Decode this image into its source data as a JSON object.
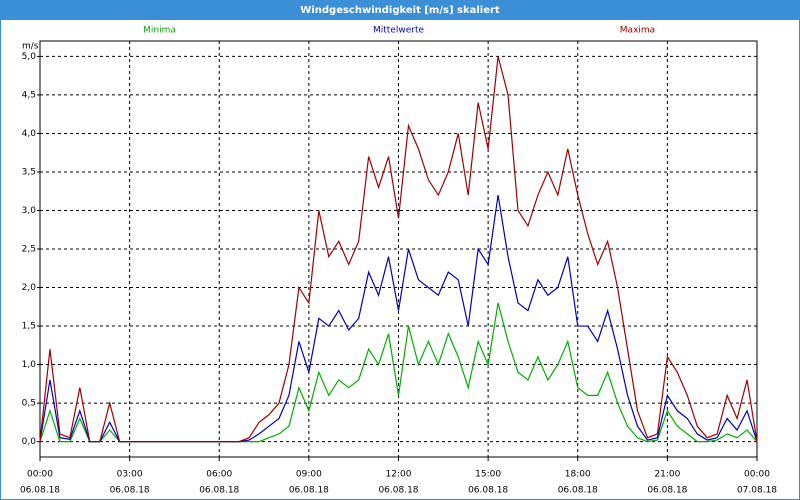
{
  "chart_data": {
    "type": "line",
    "title": "Windgeschwindigkeit [m/s] skaliert",
    "ylabel": "m/s",
    "x": [
      "06.08.18 00:00",
      "06.08.18 00:20",
      "06.08.18 00:40",
      "06.08.18 01:00",
      "06.08.18 01:20",
      "06.08.18 01:40",
      "06.08.18 02:00",
      "06.08.18 02:20",
      "06.08.18 02:40",
      "06.08.18 03:00",
      "06.08.18 03:20",
      "06.08.18 03:40",
      "06.08.18 04:00",
      "06.08.18 04:20",
      "06.08.18 04:40",
      "06.08.18 05:00",
      "06.08.18 05:20",
      "06.08.18 05:40",
      "06.08.18 06:00",
      "06.08.18 06:20",
      "06.08.18 06:40",
      "06.08.18 07:00",
      "06.08.18 07:20",
      "06.08.18 07:40",
      "06.08.18 08:00",
      "06.08.18 08:20",
      "06.08.18 08:40",
      "06.08.18 09:00",
      "06.08.18 09:20",
      "06.08.18 09:40",
      "06.08.18 10:00",
      "06.08.18 10:20",
      "06.08.18 10:40",
      "06.08.18 11:00",
      "06.08.18 11:20",
      "06.08.18 11:40",
      "06.08.18 12:00",
      "06.08.18 12:20",
      "06.08.18 12:40",
      "06.08.18 13:00",
      "06.08.18 13:20",
      "06.08.18 13:40",
      "06.08.18 14:00",
      "06.08.18 14:20",
      "06.08.18 14:40",
      "06.08.18 15:00",
      "06.08.18 15:20",
      "06.08.18 15:40",
      "06.08.18 16:00",
      "06.08.18 16:20",
      "06.08.18 16:40",
      "06.08.18 17:00",
      "06.08.18 17:20",
      "06.08.18 17:40",
      "06.08.18 18:00",
      "06.08.18 18:20",
      "06.08.18 18:40",
      "06.08.18 19:00",
      "06.08.18 19:20",
      "06.08.18 19:40",
      "06.08.18 20:00",
      "06.08.18 20:20",
      "06.08.18 20:40",
      "06.08.18 21:00",
      "06.08.18 21:20",
      "06.08.18 21:40",
      "06.08.18 22:00",
      "06.08.18 22:20",
      "06.08.18 22:40",
      "06.08.18 23:00",
      "06.08.18 23:20",
      "06.08.18 23:40",
      "07.08.18 00:00"
    ],
    "series": [
      {
        "name": "Minima",
        "color": "#00b000",
        "values": [
          0,
          0.4,
          0,
          0,
          0.3,
          0,
          0,
          0.15,
          0,
          0,
          0,
          0,
          0,
          0,
          0,
          0,
          0,
          0,
          0,
          0,
          0,
          0,
          0,
          0.05,
          0.1,
          0.2,
          0.7,
          0.4,
          0.9,
          0.6,
          0.8,
          0.7,
          0.8,
          1.2,
          1.0,
          1.4,
          0.6,
          1.5,
          1.0,
          1.3,
          1.0,
          1.4,
          1.1,
          0.7,
          1.3,
          1.0,
          1.8,
          1.3,
          0.9,
          0.8,
          1.1,
          0.8,
          1.0,
          1.3,
          0.7,
          0.6,
          0.6,
          0.9,
          0.5,
          0.2,
          0.05,
          0,
          0.02,
          0.4,
          0.2,
          0.1,
          0,
          0,
          0.02,
          0.1,
          0.05,
          0.15,
          0
        ]
      },
      {
        "name": "Mittelwerte",
        "color": "#0000c0",
        "values": [
          0,
          0.8,
          0.05,
          0.03,
          0.4,
          0,
          0,
          0.25,
          0,
          0,
          0,
          0,
          0,
          0,
          0,
          0,
          0,
          0,
          0,
          0,
          0,
          0.02,
          0.1,
          0.2,
          0.3,
          0.6,
          1.3,
          0.9,
          1.6,
          1.5,
          1.7,
          1.45,
          1.6,
          2.2,
          1.9,
          2.4,
          1.7,
          2.5,
          2.1,
          2.0,
          1.9,
          2.2,
          2.1,
          1.5,
          2.5,
          2.3,
          3.2,
          2.4,
          1.8,
          1.7,
          2.1,
          1.9,
          2.0,
          2.4,
          1.5,
          1.5,
          1.3,
          1.7,
          1.2,
          0.6,
          0.2,
          0.02,
          0.05,
          0.6,
          0.4,
          0.3,
          0.1,
          0.02,
          0.05,
          0.3,
          0.15,
          0.4,
          0
        ]
      },
      {
        "name": "Maxima",
        "color": "#a00000",
        "values": [
          0,
          1.2,
          0.1,
          0.05,
          0.7,
          0,
          0,
          0.5,
          0,
          0,
          0,
          0,
          0,
          0,
          0,
          0,
          0,
          0,
          0,
          0,
          0,
          0.05,
          0.25,
          0.35,
          0.5,
          1.0,
          2.0,
          1.8,
          3.0,
          2.4,
          2.6,
          2.3,
          2.6,
          3.7,
          3.3,
          3.7,
          2.9,
          4.1,
          3.8,
          3.4,
          3.2,
          3.5,
          4.0,
          3.2,
          4.4,
          3.8,
          5.0,
          4.5,
          3.0,
          2.8,
          3.2,
          3.5,
          3.2,
          3.8,
          3.2,
          2.7,
          2.3,
          2.6,
          2.0,
          1.2,
          0.4,
          0.05,
          0.1,
          1.1,
          0.9,
          0.6,
          0.2,
          0.05,
          0.1,
          0.6,
          0.3,
          0.8,
          0
        ]
      }
    ],
    "xlim": [
      "06.08.18 00:00",
      "07.08.18 00:00"
    ],
    "xticks": [
      {
        "value": "06.08.18 00:00",
        "label": [
          "00:00",
          "06.08.18"
        ]
      },
      {
        "value": "06.08.18 03:00",
        "label": [
          "03:00",
          "06.08.18"
        ]
      },
      {
        "value": "06.08.18 06:00",
        "label": [
          "06:00",
          "06.08.18"
        ]
      },
      {
        "value": "06.08.18 09:00",
        "label": [
          "09:00",
          "06.08.18"
        ]
      },
      {
        "value": "06.08.18 12:00",
        "label": [
          "12:00",
          "06.08.18"
        ]
      },
      {
        "value": "06.08.18 15:00",
        "label": [
          "15:00",
          "06.08.18"
        ]
      },
      {
        "value": "06.08.18 18:00",
        "label": [
          "18:00",
          "06.08.18"
        ]
      },
      {
        "value": "06.08.18 21:00",
        "label": [
          "21:00",
          "06.08.18"
        ]
      },
      {
        "value": "07.08.18 00:00",
        "label": [
          "00:00",
          "07.08.18"
        ]
      }
    ],
    "ylim": [
      -0.2,
      5.2
    ],
    "yticks": [
      {
        "value": 0,
        "label": "0,0"
      },
      {
        "value": 0.5,
        "label": "0,5"
      },
      {
        "value": 1,
        "label": "1,0"
      },
      {
        "value": 1.5,
        "label": "1,5"
      },
      {
        "value": 2,
        "label": "2,0"
      },
      {
        "value": 2.5,
        "label": "2,5"
      },
      {
        "value": 3,
        "label": "3,0"
      },
      {
        "value": 3.5,
        "label": "3,5"
      },
      {
        "value": 4,
        "label": "4,0"
      },
      {
        "value": 4.5,
        "label": "4,5"
      },
      {
        "value": 5,
        "label": "5,0"
      }
    ],
    "grid": true
  }
}
